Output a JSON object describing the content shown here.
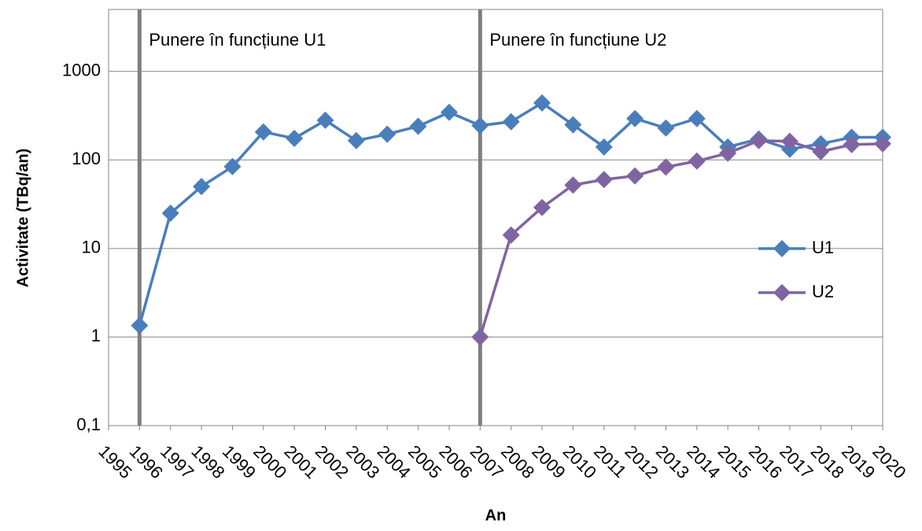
{
  "chart_data": {
    "type": "line",
    "xlabel": "An",
    "ylabel": "Activitate (TBq/an)",
    "x": [
      1995,
      1996,
      1997,
      1998,
      1999,
      2000,
      2001,
      2002,
      2003,
      2004,
      2005,
      2006,
      2007,
      2008,
      2009,
      2010,
      2011,
      2012,
      2013,
      2014,
      2015,
      2016,
      2017,
      2018,
      2019,
      2020
    ],
    "xlim": [
      1995,
      2020
    ],
    "xticks": [
      1995,
      1996,
      1997,
      1998,
      1999,
      2000,
      2001,
      2002,
      2003,
      2004,
      2005,
      2006,
      2007,
      2008,
      2009,
      2010,
      2011,
      2012,
      2013,
      2014,
      2015,
      2016,
      2017,
      2018,
      2019,
      2020
    ],
    "ylim": [
      0.1,
      5000
    ],
    "yticks": [
      {
        "value": 0.1,
        "label": "0,1"
      },
      1,
      10,
      100,
      1000
    ],
    "log_y": true,
    "grid": true,
    "legend": "right",
    "annotations": [
      {
        "x": 1996,
        "text": "Punere în funcțiune U1",
        "color": "#7f7f7f"
      },
      {
        "x": 2007,
        "text": "Punere în funcțiune U2",
        "color": "#7f7f7f"
      }
    ],
    "series": [
      {
        "name": "U1",
        "color": "#4a7ebb",
        "values": [
          null,
          1.35,
          25,
          50,
          84,
          207,
          175,
          280,
          165,
          195,
          240,
          345,
          244,
          270,
          440,
          249,
          140,
          293,
          229,
          293,
          140,
          172,
          132,
          152,
          180,
          180
        ]
      },
      {
        "name": "U2",
        "color": "#8064a2",
        "values": [
          null,
          null,
          null,
          null,
          null,
          null,
          null,
          null,
          null,
          null,
          null,
          null,
          1,
          14.2,
          29,
          52,
          60,
          66,
          83,
          97,
          119,
          165,
          162,
          124,
          149,
          152
        ]
      }
    ]
  }
}
